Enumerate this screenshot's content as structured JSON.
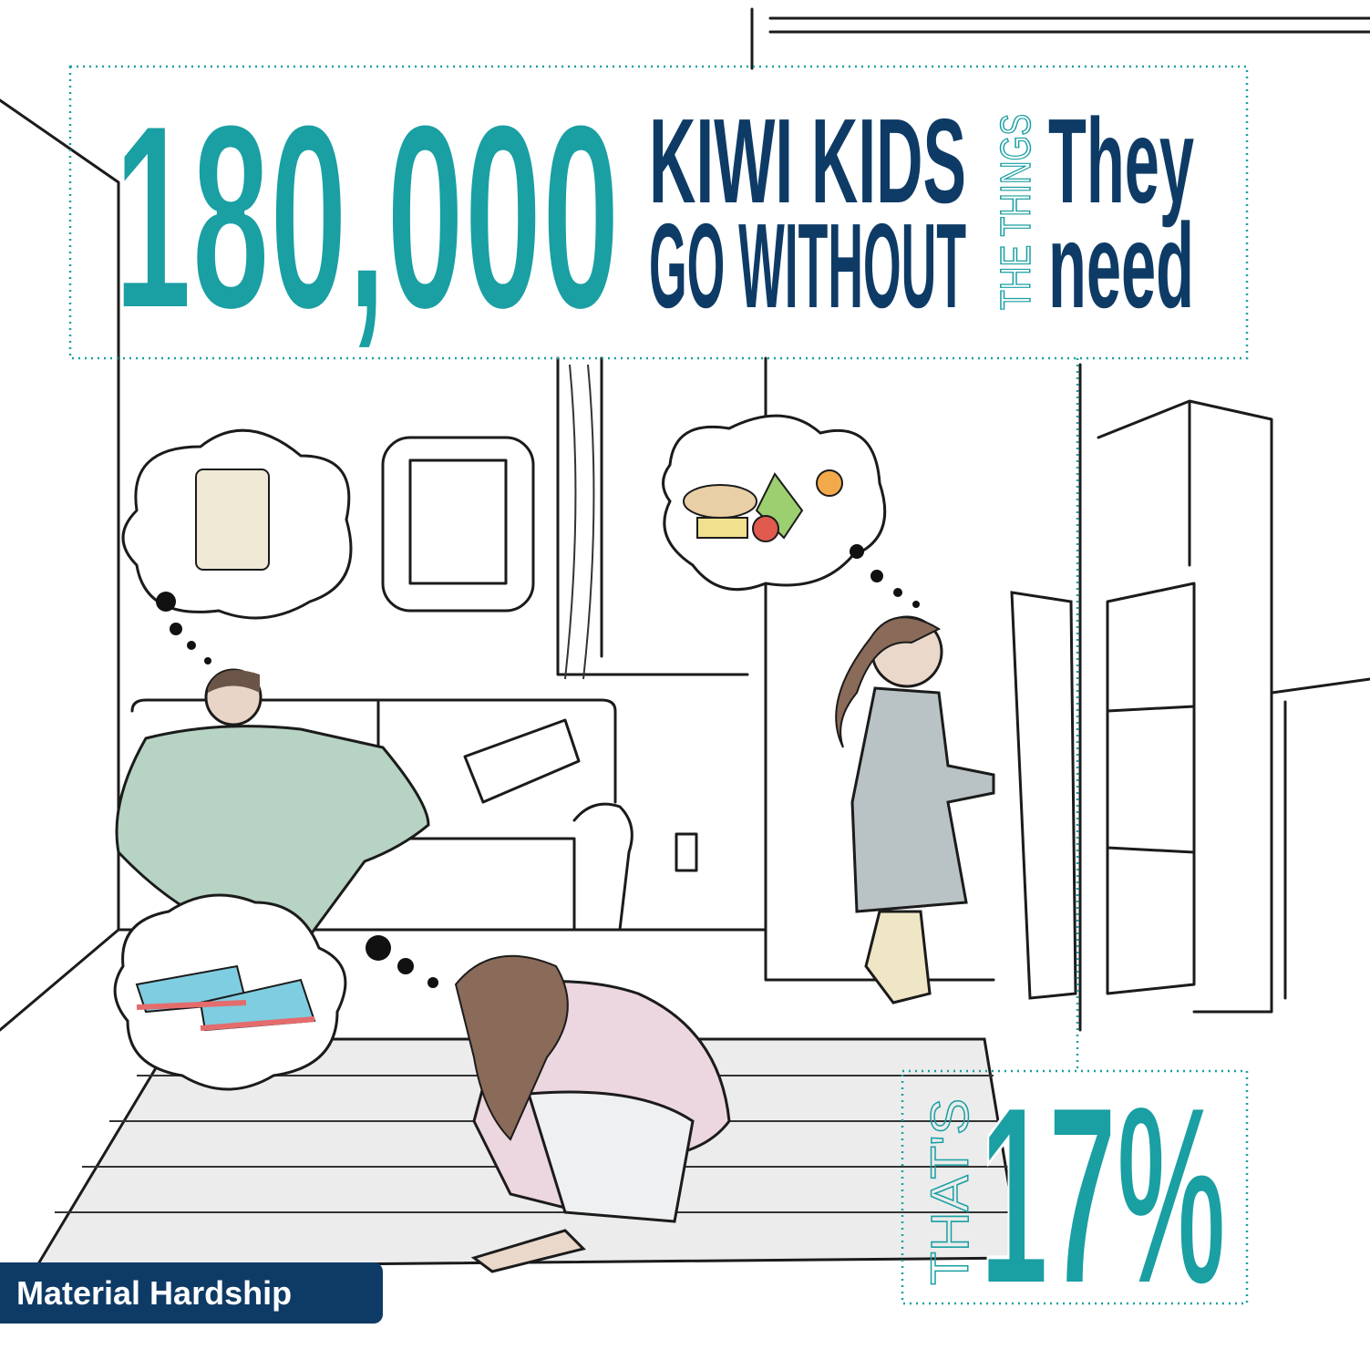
{
  "headline": {
    "number": "180,000",
    "line1": "KIWI KIDS",
    "line2": "GO WITHOUT",
    "middle": "THE THINGS",
    "word1": "They",
    "word2": "need"
  },
  "stat": {
    "prefix": "THAT'S",
    "value": "17%"
  },
  "tag": "Material Hardship"
}
